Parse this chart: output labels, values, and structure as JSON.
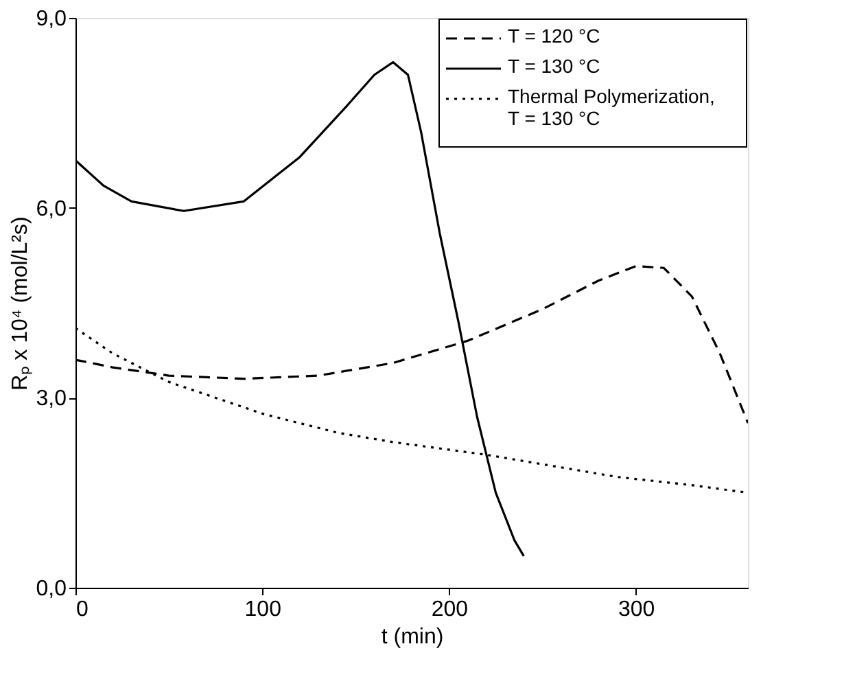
{
  "chart_data": {
    "type": "line",
    "xlabel": "t (min)",
    "ylabel": "Rₚ x 10⁴ (mol/L²s)",
    "xlim": [
      0,
      360
    ],
    "ylim": [
      0,
      9
    ],
    "xticks": [
      0,
      100,
      200,
      300
    ],
    "yticks": [
      {
        "value": 0,
        "label": "0,0"
      },
      {
        "value": 3,
        "label": "3,0"
      },
      {
        "value": 6,
        "label": "6,0"
      },
      {
        "value": 9,
        "label": "9,0"
      }
    ],
    "legend": "top right",
    "grid": false,
    "series": [
      {
        "name": "T = 120 °C",
        "color": "#000000",
        "line_style": "dashed",
        "x": [
          0,
          20,
          50,
          90,
          130,
          170,
          210,
          250,
          280,
          300,
          315,
          330,
          345,
          360
        ],
        "values": [
          3.6,
          3.48,
          3.35,
          3.3,
          3.35,
          3.55,
          3.9,
          4.4,
          4.85,
          5.08,
          5.05,
          4.6,
          3.7,
          2.6
        ]
      },
      {
        "name": "T = 130 °C",
        "color": "#000000",
        "line_style": "solid",
        "x": [
          0,
          15,
          30,
          58,
          90,
          120,
          145,
          160,
          170,
          178,
          185,
          195,
          205,
          215,
          225,
          235,
          240
        ],
        "values": [
          6.75,
          6.35,
          6.1,
          5.95,
          6.1,
          6.8,
          7.6,
          8.1,
          8.3,
          8.1,
          7.2,
          5.6,
          4.2,
          2.7,
          1.5,
          0.75,
          0.5
        ]
      },
      {
        "name": "Thermal Polymerization,\nT = 130 °C",
        "color": "#000000",
        "line_style": "dotted",
        "x": [
          0,
          20,
          50,
          100,
          140,
          170,
          220,
          260,
          290,
          330,
          360
        ],
        "values": [
          4.1,
          3.7,
          3.25,
          2.75,
          2.45,
          2.3,
          2.1,
          1.9,
          1.75,
          1.62,
          1.5
        ]
      }
    ]
  }
}
